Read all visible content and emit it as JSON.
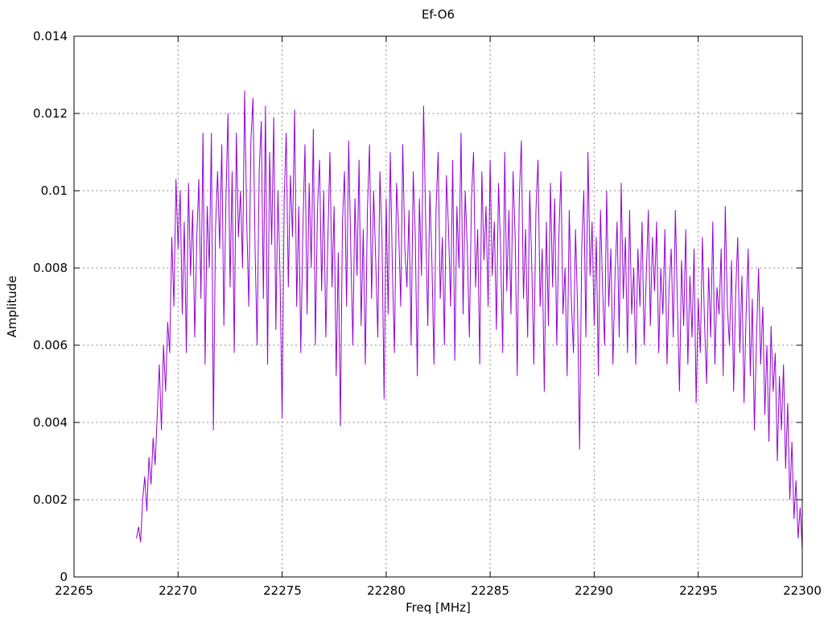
{
  "chart_data": {
    "type": "line",
    "title": "Ef-O6",
    "xlabel": "Freq [MHz]",
    "ylabel": "Amplitude",
    "xlim": [
      22265,
      22300
    ],
    "ylim": [
      0,
      0.014
    ],
    "xticks": [
      22265,
      22270,
      22275,
      22280,
      22285,
      22290,
      22295,
      22300
    ],
    "xtick_labels": [
      "22265",
      "22270",
      "22275",
      "22280",
      "22285",
      "22290",
      "22295",
      "22300"
    ],
    "yticks": [
      0,
      0.002,
      0.004,
      0.006,
      0.008,
      0.01,
      0.012,
      0.014
    ],
    "ytick_labels": [
      "0",
      "0.002",
      "0.004",
      "0.006",
      "0.008",
      "0.01",
      "0.012",
      "0.014"
    ],
    "grid": true,
    "legend": "none",
    "line_color": "#9400d3",
    "grid_color": "#8a8a8a",
    "series": [
      {
        "name": "Ef-O6",
        "x_start": 22268.0,
        "x_step": 0.1,
        "amplitude_scale": 0.0001,
        "amplitudes": [
          10,
          13,
          9,
          20,
          26,
          17,
          31,
          24,
          36,
          29,
          42,
          55,
          38,
          60,
          48,
          66,
          58,
          88,
          70,
          103,
          85,
          100,
          68,
          92,
          58,
          102,
          78,
          95,
          62,
          88,
          103,
          72,
          115,
          55,
          96,
          80,
          115,
          38,
          90,
          105,
          85,
          112,
          65,
          98,
          120,
          75,
          105,
          58,
          115,
          88,
          100,
          80,
          126,
          92,
          70,
          113,
          124,
          85,
          60,
          105,
          118,
          72,
          122,
          55,
          110,
          86,
          119,
          64,
          100,
          78,
          41,
          98,
          115,
          75,
          104,
          88,
          121,
          70,
          96,
          58,
          90,
          112,
          68,
          102,
          80,
          116,
          60,
          95,
          108,
          74,
          100,
          62,
          88,
          110,
          75,
          96,
          52,
          84,
          39,
          92,
          105,
          70,
          113,
          85,
          60,
          98,
          78,
          108,
          65,
          90,
          55,
          95,
          112,
          72,
          100,
          82,
          62,
          105,
          88,
          46,
          98,
          68,
          110,
          80,
          58,
          102,
          90,
          70,
          112,
          85,
          75,
          95,
          60,
          105,
          88,
          52,
          98,
          78,
          122,
          92,
          65,
          100,
          82,
          55,
          95,
          110,
          72,
          88,
          60,
          104,
          90,
          70,
          108,
          56,
          96,
          80,
          115,
          68,
          100,
          85,
          62,
          98,
          110,
          75,
          90,
          55,
          105,
          82,
          96,
          70,
          108,
          78,
          92,
          64,
          102,
          85,
          58,
          110,
          74,
          95,
          68,
          105,
          88,
          52,
          98,
          113,
          72,
          90,
          62,
          100,
          80,
          55,
          95,
          108,
          70,
          85,
          48,
          92,
          65,
          102,
          75,
          98,
          60,
          88,
          105,
          68,
          80,
          52,
          95,
          72,
          58,
          90,
          70,
          33,
          85,
          100,
          62,
          110,
          78,
          92,
          65,
          88,
          52,
          95,
          75,
          60,
          100,
          70,
          85,
          55,
          78,
          92,
          62,
          102,
          72,
          88,
          58,
          95,
          68,
          80,
          55,
          85,
          70,
          92,
          60,
          78,
          95,
          65,
          88,
          74,
          92,
          58,
          80,
          68,
          90,
          55,
          75,
          85,
          62,
          95,
          70,
          48,
          82,
          65,
          90,
          55,
          78,
          62,
          85,
          45,
          72,
          58,
          88,
          66,
          50,
          80,
          62,
          92,
          55,
          75,
          68,
          85,
          52,
          96,
          70,
          60,
          82,
          48,
          74,
          88,
          58,
          78,
          45,
          68,
          85,
          52,
          72,
          38,
          62,
          80,
          55,
          70,
          42,
          60,
          35,
          65,
          48,
          58,
          30,
          52,
          38,
          55,
          28,
          45,
          20,
          35,
          15,
          25,
          10,
          18,
          7
        ]
      }
    ]
  }
}
